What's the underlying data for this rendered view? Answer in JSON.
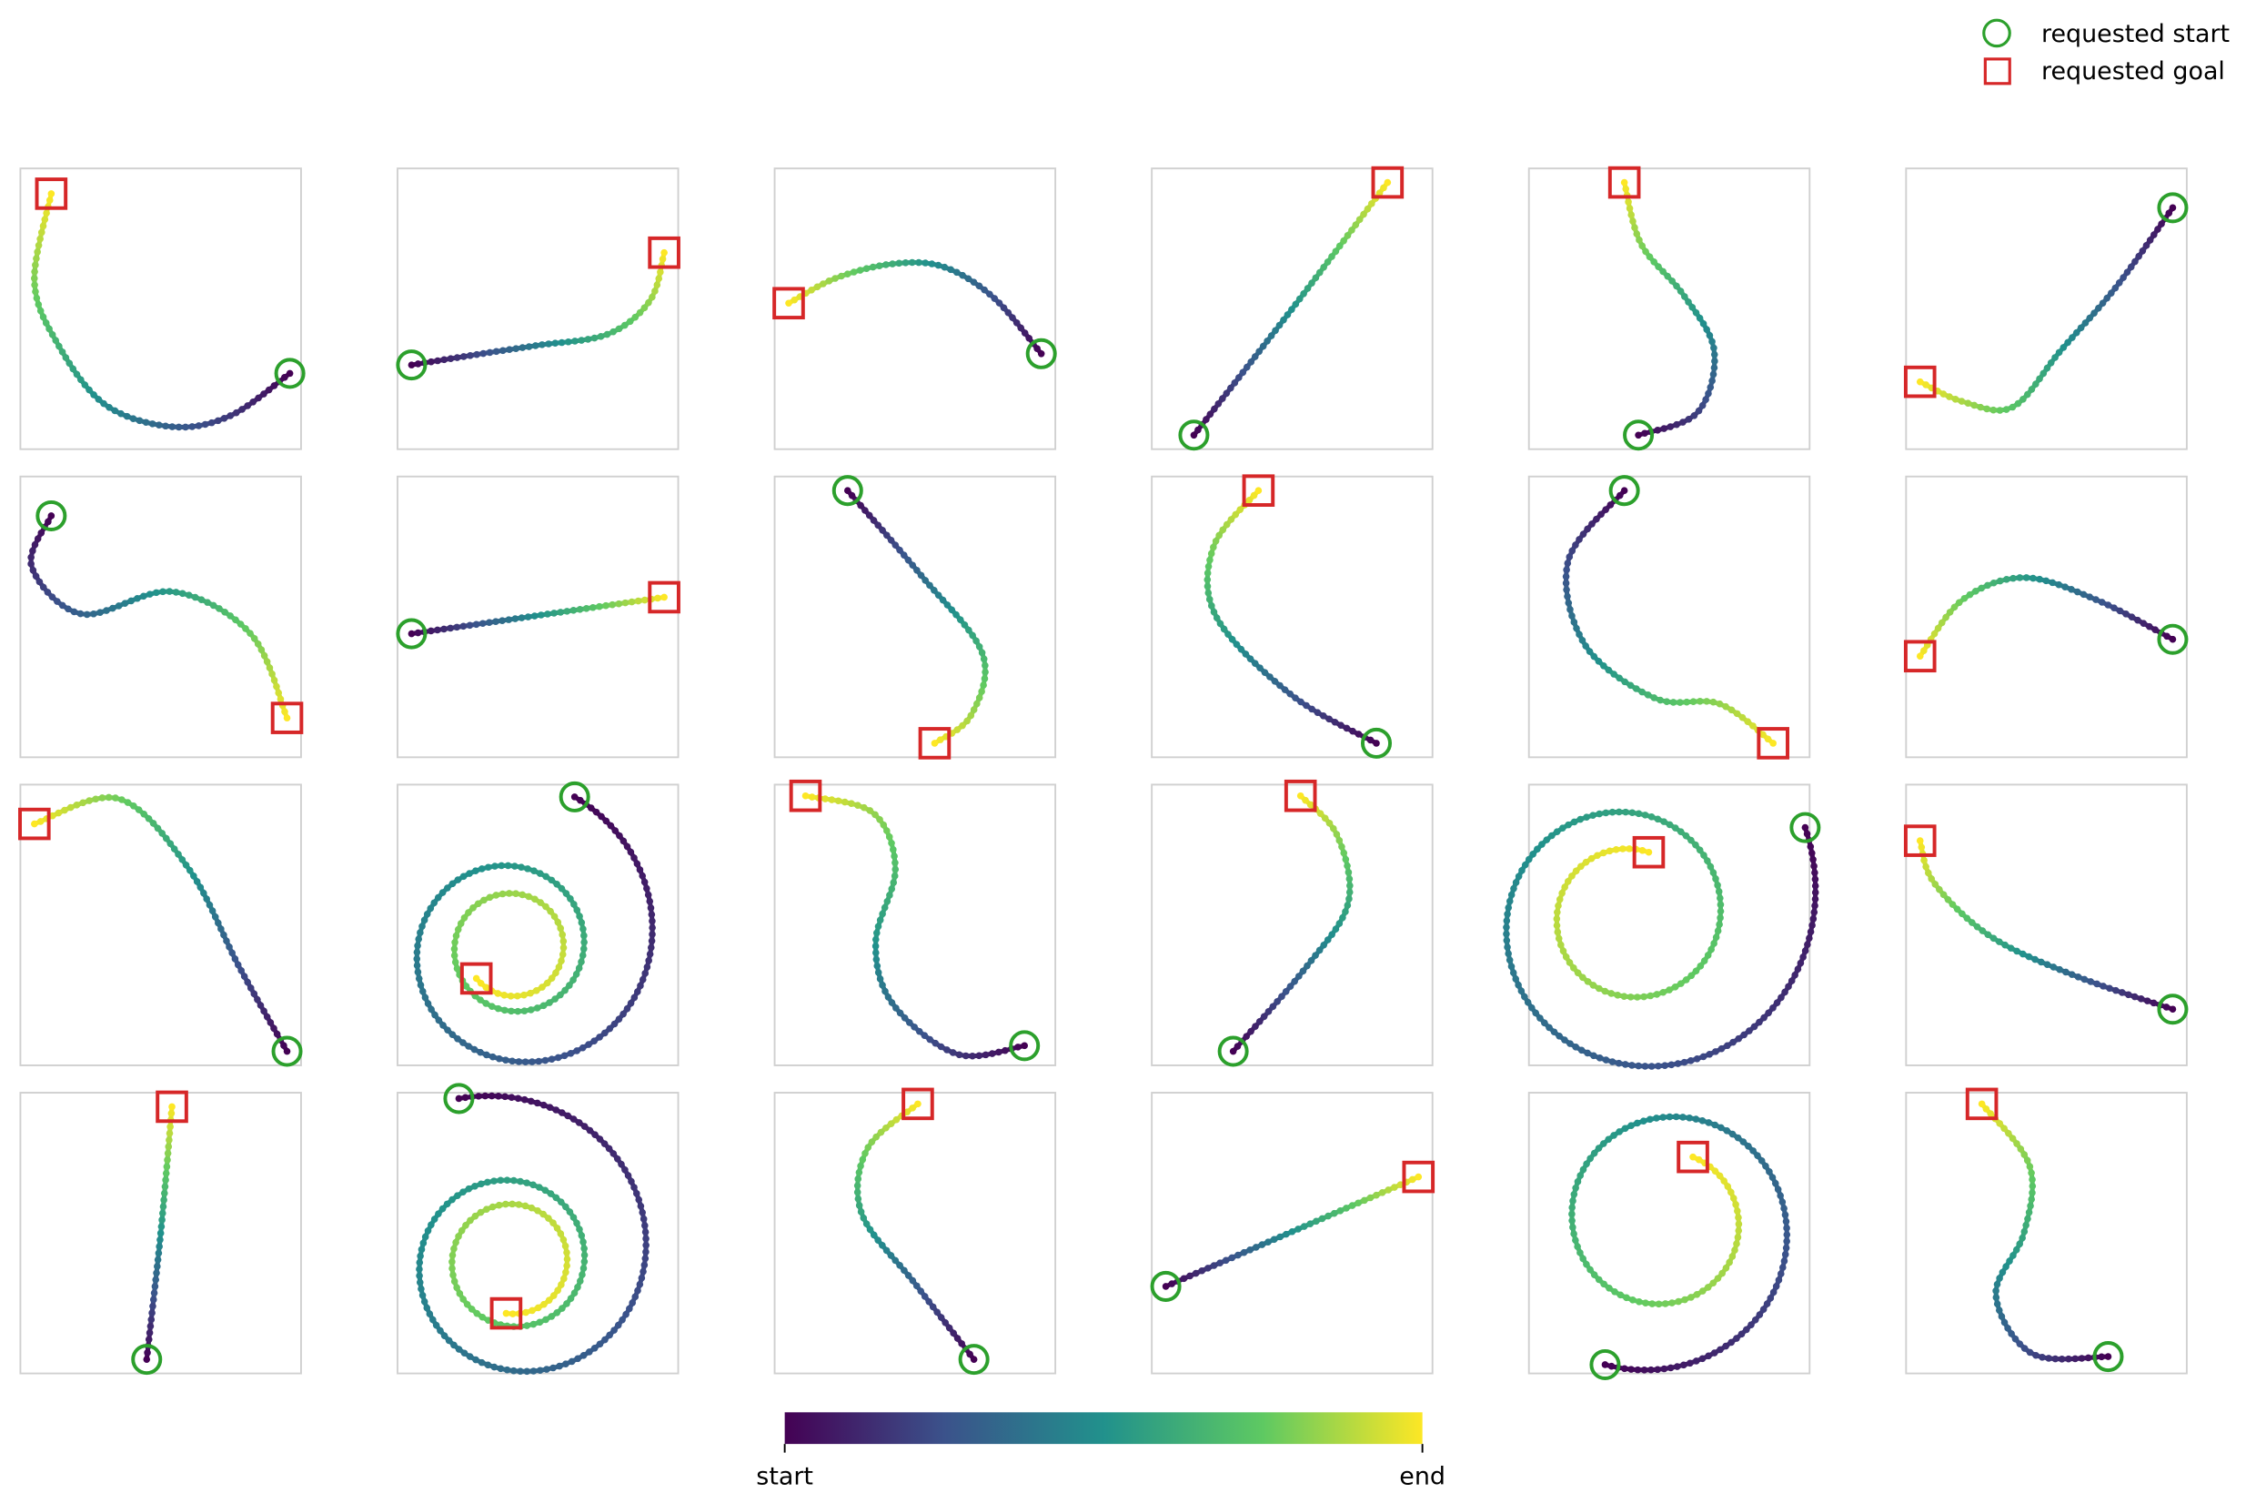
{
  "legend": {
    "entries": [
      "requested start",
      "requested goal"
    ]
  },
  "colorbar": {
    "labels": [
      "start",
      "end"
    ]
  }
}
